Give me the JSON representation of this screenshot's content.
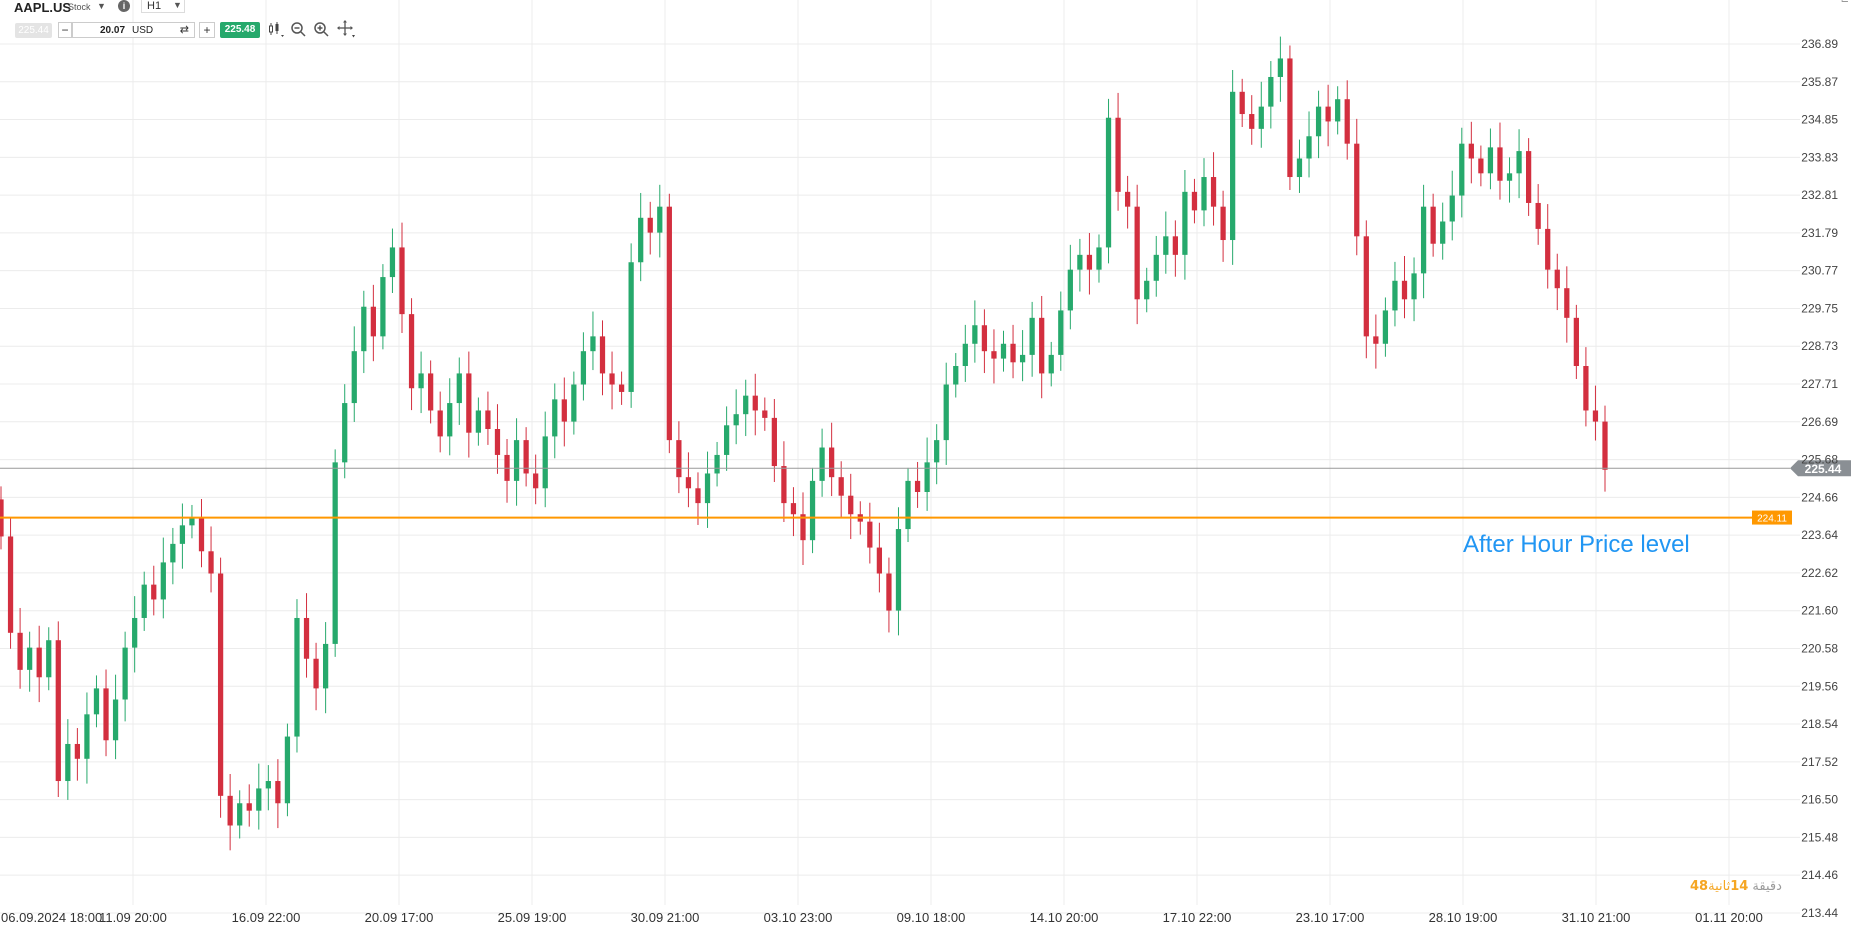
{
  "toolbar": {
    "symbol": "AAPL.US",
    "symbol_type": "Stock",
    "timeframe": "H1",
    "bid": "225.44",
    "quantity": "20.07",
    "quantity_unit": "USD",
    "ask": "225.48",
    "icons": [
      "dropdown-icon",
      "info-icon",
      "swap-icon",
      "candles-icon",
      "zoom-out-icon",
      "zoom-in-icon",
      "crosshair-icon"
    ]
  },
  "annotation": "After Hour Price level",
  "countdown": {
    "minutes_label": "دقيقة",
    "seconds_value": "14",
    "seconds_label": "ثانية",
    "ticks_value": "48"
  },
  "colors": {
    "up": "#26a96c",
    "down": "#d32f3f",
    "grid": "#ececec",
    "price_line": "#999999",
    "level_line": "#ff9800",
    "annotation": "#2196f3"
  },
  "chart_data": {
    "type": "candlestick",
    "title": "AAPL.US H1",
    "ylim": [
      213.44,
      237.7
    ],
    "y_ticks": [
      "236.89",
      "235.87",
      "234.85",
      "233.83",
      "232.81",
      "231.79",
      "230.77",
      "229.75",
      "228.73",
      "227.71",
      "226.69",
      "225.68",
      "224.66",
      "223.64",
      "222.62",
      "221.60",
      "220.58",
      "219.56",
      "218.54",
      "217.52",
      "216.50",
      "215.48",
      "214.46",
      "213.44"
    ],
    "x_ticks": [
      "06.09.2024 18:00",
      "11.09 20:00",
      "16.09 22:00",
      "20.09 17:00",
      "25.09 19:00",
      "30.09 21:00",
      "03.10 23:00",
      "09.10 18:00",
      "14.10 20:00",
      "17.10 22:00",
      "23.10 17:00",
      "28.10 19:00",
      "31.10 21:00",
      "01.11 20:00"
    ],
    "current_price": {
      "value": 225.44,
      "label": "225.44"
    },
    "horizontal_level": {
      "value": 224.11,
      "label": "224.11"
    },
    "closes": [
      223.6,
      221.0,
      220.0,
      220.6,
      219.8,
      220.8,
      217.0,
      218.0,
      217.6,
      218.8,
      219.5,
      218.1,
      219.2,
      220.6,
      221.4,
      222.3,
      221.9,
      222.9,
      223.4,
      223.9,
      224.1,
      223.2,
      222.6,
      216.6,
      215.8,
      216.4,
      216.2,
      216.8,
      217.0,
      216.4,
      218.2,
      221.4,
      220.3,
      219.5,
      220.7,
      225.6,
      227.2,
      228.6,
      229.8,
      229.0,
      230.6,
      231.4,
      229.6,
      227.6,
      228.0,
      227.0,
      226.3,
      227.2,
      228.0,
      226.4,
      227.0,
      226.5,
      225.8,
      225.1,
      226.2,
      225.3,
      224.9,
      226.3,
      227.3,
      226.7,
      227.7,
      228.6,
      229.0,
      228.0,
      227.7,
      227.5,
      231.0,
      232.2,
      231.8,
      232.5,
      226.2,
      225.2,
      224.9,
      224.5,
      225.3,
      225.8,
      226.6,
      226.9,
      227.4,
      227.0,
      226.8,
      225.5,
      224.5,
      224.2,
      223.5,
      225.1,
      226.0,
      225.2,
      224.7,
      224.2,
      224.0,
      223.3,
      222.6,
      221.6,
      223.8,
      225.1,
      224.8,
      225.6,
      226.2,
      227.7,
      228.2,
      228.8,
      229.3,
      228.6,
      228.4,
      228.8,
      228.3,
      228.5,
      229.5,
      228.0,
      228.5,
      229.7,
      230.8,
      231.2,
      230.8,
      231.4,
      234.9,
      232.9,
      232.5,
      230.0,
      230.5,
      231.2,
      231.7,
      231.2,
      232.9,
      232.4,
      233.3,
      232.5,
      231.6,
      235.6,
      235.0,
      234.6,
      235.2,
      236.0,
      236.5,
      233.3,
      233.8,
      234.4,
      235.2,
      234.8,
      235.4,
      234.2,
      231.7,
      229.0,
      228.8,
      229.7,
      230.5,
      230.0,
      230.7,
      232.5,
      231.5,
      232.1,
      232.8,
      234.2,
      233.8,
      233.4,
      234.1,
      233.2,
      233.4,
      234.0,
      232.6,
      231.9,
      230.8,
      230.3,
      229.5,
      228.2,
      227.0,
      226.7,
      225.4
    ]
  }
}
